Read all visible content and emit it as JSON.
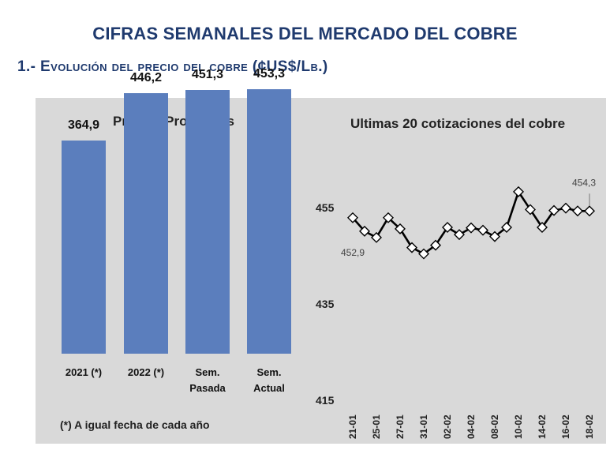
{
  "header": {
    "title": "CIFRAS SEMANALES DEL MERCADO DEL COBRE",
    "subtitle": "1.- Evolución del precio del cobre (¢US$/Lb.)"
  },
  "colors": {
    "title": "#1f3a6e",
    "bar": "#5b7ebd",
    "panel": "#d9d9d9",
    "line": "#000000"
  },
  "note": "(*) A igual fecha de cada año",
  "chart_data": [
    {
      "type": "bar",
      "title": "Precios Promedios",
      "categories": [
        "2021 (*)",
        "2022 (*)",
        "Sem. Pasada",
        "Sem. Actual"
      ],
      "category_lines": [
        [
          "2021 (*)"
        ],
        [
          "2022 (*)"
        ],
        [
          "Sem.",
          "Pasada"
        ],
        [
          "Sem.",
          "Actual"
        ]
      ],
      "values": [
        364.9,
        446.2,
        451.3,
        453.3
      ],
      "value_labels": [
        "364,9",
        "446,2",
        "451,3",
        "453,3"
      ],
      "ylim": [
        0,
        500
      ],
      "grid": false
    },
    {
      "type": "line",
      "title": "Ultimas 20 cotizaciones del cobre",
      "x": [
        "21-01",
        "24-01",
        "25-01",
        "26-01",
        "27-01",
        "28-01",
        "31-01",
        "01-02",
        "02-02",
        "03-02",
        "04-02",
        "07-02",
        "08-02",
        "09-02",
        "10-02",
        "11-02",
        "14-02",
        "15-02",
        "16-02",
        "17-02",
        "18-02"
      ],
      "x_tick_labels": [
        "21-01",
        "25-01",
        "27-01",
        "31-01",
        "02-02",
        "04-02",
        "08-02",
        "10-02",
        "14-02",
        "16-02",
        "18-02"
      ],
      "y": [
        452.9,
        450.1,
        448.8,
        452.9,
        450.6,
        446.7,
        445.4,
        447.2,
        450.9,
        449.4,
        450.8,
        450.3,
        449.0,
        450.9,
        458.3,
        454.6,
        450.9,
        454.4,
        454.9,
        454.3,
        454.3
      ],
      "y_ticks": [
        415,
        435,
        455
      ],
      "y_tick_labels": [
        "415",
        "435",
        "455"
      ],
      "ylim": [
        415,
        462
      ],
      "labels": [
        {
          "index": 0,
          "text": "452,9"
        },
        {
          "index": 20,
          "text": "454,3"
        }
      ],
      "marker": "diamond",
      "grid": false
    }
  ]
}
